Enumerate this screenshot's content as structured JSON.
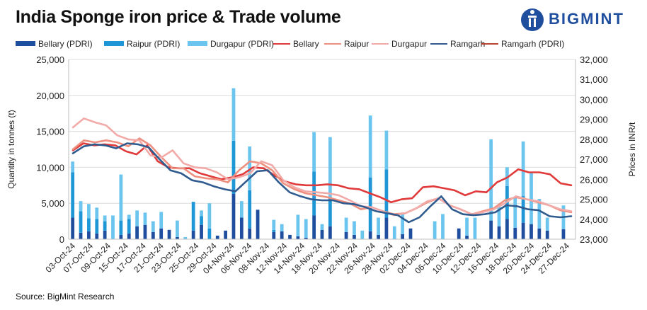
{
  "title": "India Sponge iron price & Trade volume",
  "logo_text": "BIGMINT",
  "source": "Source: BigMint Research",
  "colors": {
    "bellary_bar": "#1f4e9e",
    "raipur_bar": "#1f97d6",
    "durgapur_bar": "#6cc5ee",
    "bellary_line": "#e03a3a",
    "raipur_line": "#ee8f7f",
    "durgapur_line": "#f2aaa8",
    "ramgarh_line": "#2f5b8f",
    "ramgarh_pdri_line": "#b5452e",
    "logo": "#1f4e9e"
  },
  "chart_data": {
    "type": "bar+line",
    "ylabel": "Quantity in tonnes (t)",
    "y2label": "Prices in INR/t",
    "ylim": [
      0,
      25000
    ],
    "y2lim": [
      23000,
      32000
    ],
    "yticks": [
      "0",
      "5,000",
      "10,000",
      "15,000",
      "20,000",
      "25,000"
    ],
    "y2ticks": [
      "23,000",
      "24,000",
      "25,000",
      "26,000",
      "27,000",
      "28,000",
      "29,000",
      "30,000",
      "31,000",
      "32,000"
    ],
    "x_labels": [
      "03-Oct-24",
      "07-Oct-24",
      "09-Oct-24",
      "15-Oct-24",
      "17-Oct-24",
      "21-Oct-24",
      "23-Oct-24",
      "25-Oct-24",
      "29-Oct-24",
      "04-Nov-24",
      "06-Nov-24",
      "08-Nov-24",
      "12-Nov-24",
      "14-Nov-24",
      "18-Nov-24",
      "20-Nov-24",
      "22-Nov-24",
      "26-Nov-24",
      "28-Nov-24",
      "02-Dec-24",
      "04-Dec-24",
      "06-Dec-24",
      "10-Dec-24",
      "12-Dec-24",
      "16-Dec-24",
      "18-Dec-24",
      "20-Dec-24",
      "24-Dec-24",
      "27-Dec-24"
    ],
    "legend": [
      "Bellary (PDRI)",
      "Raipur (PDRI)",
      "Durgapur (PDRI)",
      "Bellary",
      "Raipur",
      "Durgapur",
      "Ramgarh",
      "Ramgarh (PDRI)"
    ],
    "bar_series": [
      {
        "name": "Bellary (PDRI)",
        "values": [
          3000,
          900,
          1100,
          800,
          1200,
          0,
          600,
          800,
          1800,
          2000,
          1000,
          1500,
          1300,
          300,
          0,
          1200,
          2000,
          0,
          500,
          1200,
          6300,
          3000,
          1500,
          4100,
          0,
          1000,
          1100,
          600,
          400,
          200,
          3300,
          1300,
          1800,
          0,
          1000,
          600,
          0,
          1100,
          600,
          3000,
          0,
          700,
          1500,
          0,
          0,
          0,
          0,
          0,
          1500,
          500,
          0,
          0,
          2600,
          1800,
          2800,
          1600,
          2300,
          2100,
          1500,
          1200,
          0,
          1400,
          0
        ]
      },
      {
        "name": "Raipur (PDRI)",
        "values": [
          6300,
          3000,
          1800,
          2000,
          1300,
          0,
          2000,
          2000,
          0,
          0,
          0,
          0,
          0,
          0,
          0,
          4000,
          1200,
          1500,
          0,
          0,
          7400,
          0,
          5300,
          0,
          0,
          300,
          0,
          0,
          0,
          0,
          6100,
          0,
          3900,
          0,
          0,
          0,
          0,
          7500,
          0,
          6700,
          0,
          0,
          0,
          0,
          0,
          0,
          0,
          0,
          0,
          0,
          0,
          0,
          0,
          0,
          4600,
          0,
          3700,
          0,
          0,
          0,
          0,
          0,
          0
        ]
      },
      {
        "name": "Durgapur (PDRI)",
        "values": [
          1500,
          1400,
          2000,
          1600,
          800,
          3300,
          6400,
          600,
          2200,
          1700,
          1500,
          2300,
          0,
          2300,
          300,
          0,
          800,
          3500,
          0,
          0,
          7300,
          2300,
          6100,
          0,
          0,
          1400,
          1000,
          0,
          3000,
          2600,
          5500,
          800,
          8500,
          0,
          2000,
          1900,
          1200,
          8600,
          2400,
          5400,
          1800,
          2900,
          0,
          0,
          0,
          2500,
          3500,
          0,
          0,
          2500,
          3000,
          0,
          11300,
          3000,
          2600,
          4200,
          7600,
          7300,
          4100,
          1800,
          0,
          3300,
          0
        ]
      }
    ],
    "line_series": [
      {
        "name": "Bellary",
        "values": [
          27450,
          27800,
          27700,
          27750,
          27700,
          27400,
          27250,
          27700,
          26900,
          26600,
          26550,
          26550,
          26300,
          26150,
          26000,
          26100,
          26250,
          26600,
          26550,
          26200,
          25900,
          25750,
          25700,
          25700,
          25750,
          25700,
          25550,
          25500,
          25300,
          25100,
          24850,
          25000,
          25050,
          25600,
          25650,
          25550,
          25450,
          25200,
          25400,
          25350,
          25850,
          26100,
          26500,
          26350,
          26350,
          26250,
          25800,
          25700
        ]
      },
      {
        "name": "Raipur",
        "values": [
          27500,
          27950,
          27850,
          27950,
          27850,
          27650,
          28050,
          27700,
          27100,
          26550,
          26550,
          26150,
          26050,
          26000,
          25850,
          26450,
          26900,
          26800,
          26450,
          25800,
          25500,
          25300,
          25200,
          25100,
          24950,
          24800,
          24500,
          24600,
          24400,
          24250,
          24300,
          24550,
          24850,
          25050,
          24700,
          24500,
          24250,
          24400,
          24550,
          24950,
          25100,
          25000,
          24850,
          24700,
          24450,
          24350
        ]
      },
      {
        "name": "Durgapur",
        "values": [
          28600,
          29050,
          28850,
          28700,
          28200,
          28000,
          27950,
          27200,
          27100,
          27450,
          26800,
          26600,
          26550,
          26350,
          26000,
          26100,
          26300,
          26900,
          26700,
          25950,
          25600,
          25400,
          25350,
          25300,
          25200,
          24950,
          24650,
          24600,
          24400,
          24200,
          24300,
          24550,
          24900,
          25050,
          24700,
          24500,
          24250,
          24350,
          24500,
          24800,
          25150,
          25000,
          24900,
          24700,
          24500,
          24400
        ]
      },
      {
        "name": "Ramgarh",
        "values": [
          27300,
          27650,
          27750,
          27700,
          27550,
          27800,
          27750,
          27600,
          27000,
          26450,
          26300,
          25950,
          25850,
          25650,
          25500,
          25400,
          25900,
          26400,
          26450,
          25850,
          25350,
          25150,
          25000,
          24950,
          24950,
          24800,
          24750,
          24600,
          24400,
          24300,
          24200,
          23850,
          24100,
          24650,
          25150,
          24500,
          24250,
          24200,
          24250,
          24350,
          24700,
          24650,
          24500,
          24450,
          24150,
          24100,
          24150
        ]
      },
      {
        "name": "Ramgarh (PDRI)",
        "values": []
      }
    ]
  }
}
